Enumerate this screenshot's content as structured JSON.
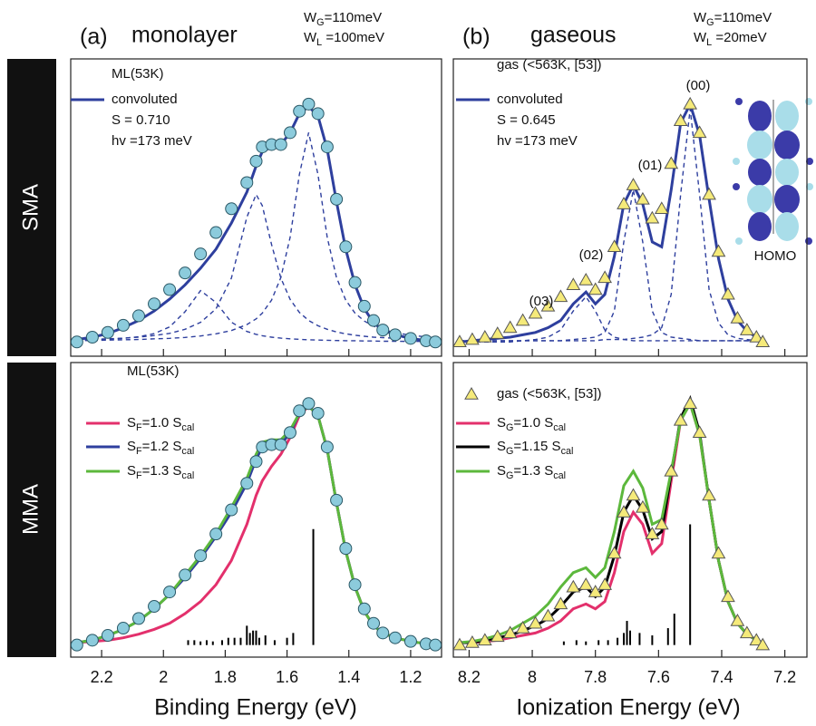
{
  "figure": {
    "panel_labels": [
      "(a)",
      "(b)"
    ],
    "columns": [
      "monolayer",
      "gaseous"
    ],
    "widths": [
      [
        [
          "W",
          "G",
          "=110meV"
        ],
        [
          "W",
          "L",
          " =100meV"
        ]
      ],
      [
        [
          "W",
          "G",
          "=110meV"
        ],
        [
          "W",
          "L",
          " =20meV"
        ]
      ]
    ],
    "rows": [
      "SMA",
      "MMA"
    ],
    "x_labels": [
      "Binding Energy (eV)",
      "Ionization Energy (eV)"
    ]
  },
  "chart_data": [
    {
      "type": "line",
      "xlim": [
        2.3,
        1.1
      ],
      "ylim": [
        -0.06,
        1.19
      ],
      "x": [
        2.28,
        2.23,
        2.18,
        2.13,
        2.08,
        2.03,
        1.98,
        1.93,
        1.88,
        1.83,
        1.78,
        1.73,
        1.7,
        1.68,
        1.65,
        1.62,
        1.59,
        1.56,
        1.53,
        1.5,
        1.47,
        1.44,
        1.41,
        1.38,
        1.35,
        1.32,
        1.29,
        1.25,
        1.2,
        1.15,
        1.12
      ],
      "legend_notes": [
        "S = 0.710",
        "hv =173 meV"
      ],
      "series": [
        {
          "name": "ML(53K)",
          "color": "#8ccbdc",
          "marker": "circle",
          "values": [
            0,
            0.02,
            0.04,
            0.07,
            0.11,
            0.16,
            0.22,
            0.29,
            0.37,
            0.46,
            0.56,
            0.67,
            0.76,
            0.82,
            0.83,
            0.83,
            0.88,
            0.97,
            1.0,
            0.96,
            0.82,
            0.6,
            0.4,
            0.25,
            0.15,
            0.09,
            0.05,
            0.03,
            0.015,
            0.005,
            0
          ]
        },
        {
          "name": "convoluted",
          "color": "#2e3f9e",
          "values": [
            0.01,
            0.02,
            0.035,
            0.06,
            0.09,
            0.13,
            0.18,
            0.24,
            0.31,
            0.39,
            0.5,
            0.63,
            0.74,
            0.8,
            0.82,
            0.83,
            0.88,
            0.96,
            0.99,
            0.95,
            0.81,
            0.59,
            0.39,
            0.24,
            0.14,
            0.08,
            0.05,
            0.03,
            0.015,
            0.005,
            0
          ]
        },
        {
          "color": "#2e3f9e",
          "dash": true,
          "values": [
            0.006,
            0.006,
            0.008,
            0.009,
            0.01,
            0.013,
            0.015,
            0.019,
            0.025,
            0.034,
            0.048,
            0.073,
            0.097,
            0.121,
            0.176,
            0.271,
            0.44,
            0.704,
            0.88,
            0.704,
            0.44,
            0.271,
            0.176,
            0.121,
            0.088,
            0.066,
            0.052,
            0.039,
            0.028,
            0.021,
            0.018
          ]
        },
        {
          "color": "#2e3f9e",
          "dash": true,
          "values": [
            0.009,
            0.011,
            0.013,
            0.016,
            0.02,
            0.027,
            0.036,
            0.053,
            0.082,
            0.139,
            0.268,
            0.525,
            0.62,
            0.573,
            0.41,
            0.268,
            0.179,
            0.124,
            0.09,
            0.068,
            0.053,
            0.042,
            0.034,
            0.028,
            0.024,
            0.02,
            0.018,
            0.015,
            0.012,
            0.01,
            0.009
          ]
        },
        {
          "color": "#2e3f9e",
          "dash": true,
          "values": [
            0.006,
            0.008,
            0.011,
            0.015,
            0.022,
            0.035,
            0.063,
            0.127,
            0.216,
            0.166,
            0.083,
            0.044,
            0.032,
            0.026,
            0.02,
            0.016,
            0.013,
            0.011,
            0.009,
            0.008,
            0.007,
            0.006,
            0.005,
            0.005,
            0.004,
            0.004,
            0.003,
            0.003,
            0.002,
            0.002,
            0.002
          ]
        }
      ]
    },
    {
      "type": "line",
      "xlim": [
        8.25,
        7.13
      ],
      "ylim": [
        -0.06,
        1.19
      ],
      "x": [
        8.23,
        8.19,
        8.15,
        8.11,
        8.07,
        8.03,
        7.99,
        7.95,
        7.91,
        7.87,
        7.83,
        7.8,
        7.77,
        7.74,
        7.71,
        7.68,
        7.65,
        7.62,
        7.59,
        7.56,
        7.53,
        7.5,
        7.47,
        7.44,
        7.41,
        7.38,
        7.35,
        7.32,
        7.29,
        7.27
      ],
      "legend_notes": [
        "S = 0.645",
        "hv =173 meV"
      ],
      "annotations": [
        "(03)",
        "(02)",
        "(01)",
        "(00)",
        "HOMO"
      ],
      "series": [
        {
          "name": "gas (<563K, [53])",
          "color": "#f5ea7a",
          "marker": "triangle",
          "values": [
            0,
            0.01,
            0.02,
            0.035,
            0.06,
            0.09,
            0.12,
            0.15,
            0.19,
            0.24,
            0.26,
            0.22,
            0.27,
            0.4,
            0.58,
            0.66,
            0.6,
            0.52,
            0.56,
            0.75,
            0.93,
            1.0,
            0.88,
            0.62,
            0.38,
            0.2,
            0.1,
            0.05,
            0.02,
            0
          ]
        },
        {
          "name": "convoluted",
          "color": "#2e3f9e",
          "values": [
            0,
            0.005,
            0.01,
            0.015,
            0.02,
            0.03,
            0.04,
            0.06,
            0.09,
            0.16,
            0.21,
            0.16,
            0.2,
            0.36,
            0.58,
            0.66,
            0.58,
            0.42,
            0.4,
            0.64,
            0.92,
            1.0,
            0.87,
            0.6,
            0.35,
            0.18,
            0.09,
            0.045,
            0.02,
            0.01
          ]
        },
        {
          "color": "#2e3f9e",
          "dash": true,
          "values": [
            0,
            0,
            0,
            0,
            0,
            0.005,
            0.005,
            0.005,
            0.005,
            0.005,
            0.005,
            0.005,
            0.01,
            0.01,
            0.01,
            0.015,
            0.02,
            0.03,
            0.06,
            0.2,
            0.62,
            0.98,
            0.62,
            0.22,
            0.08,
            0.03,
            0.015,
            0.01,
            0.005,
            0.005
          ]
        },
        {
          "color": "#2e3f9e",
          "dash": true,
          "values": [
            0.005,
            0.005,
            0.005,
            0.005,
            0.005,
            0.005,
            0.005,
            0.005,
            0.005,
            0.01,
            0.015,
            0.02,
            0.04,
            0.13,
            0.42,
            0.64,
            0.42,
            0.13,
            0.04,
            0.02,
            0.015,
            0.01,
            0.005,
            0.005,
            0.005,
            0.005,
            0.005,
            0.005,
            0.005,
            0.005
          ]
        },
        {
          "color": "#2e3f9e",
          "dash": true,
          "values": [
            0.005,
            0.005,
            0.005,
            0.005,
            0.005,
            0.005,
            0.01,
            0.02,
            0.05,
            0.13,
            0.19,
            0.13,
            0.05,
            0.02,
            0.01,
            0.005,
            0.005,
            0.005,
            0.005,
            0.005,
            0.005,
            0.005,
            0.005,
            0.005,
            0.005,
            0.005,
            0.005,
            0.005,
            0.005,
            0.005
          ]
        }
      ]
    },
    {
      "type": "line",
      "xlim": [
        2.3,
        1.1
      ],
      "ylim": [
        -0.05,
        1.17
      ],
      "xticks": [
        2.2,
        2,
        1.8,
        1.6,
        1.4,
        1.2
      ],
      "x": [
        2.28,
        2.23,
        2.18,
        2.13,
        2.08,
        2.03,
        1.98,
        1.93,
        1.88,
        1.83,
        1.78,
        1.73,
        1.7,
        1.68,
        1.65,
        1.62,
        1.59,
        1.56,
        1.53,
        1.5,
        1.47,
        1.44,
        1.41,
        1.38,
        1.35,
        1.32,
        1.29,
        1.25,
        1.2,
        1.15,
        1.12
      ],
      "series": [
        {
          "name": [
            "S",
            "F",
            "=1.0 S",
            "cal"
          ],
          "color": "#e3306c",
          "values": [
            0.01,
            0.015,
            0.02,
            0.03,
            0.045,
            0.065,
            0.09,
            0.13,
            0.18,
            0.25,
            0.35,
            0.5,
            0.62,
            0.68,
            0.74,
            0.79,
            0.86,
            0.95,
            0.99,
            0.95,
            0.81,
            0.59,
            0.39,
            0.24,
            0.14,
            0.08,
            0.05,
            0.03,
            0.015,
            0.005,
            0
          ]
        },
        {
          "name": [
            "S",
            "F",
            "=1.2 S",
            "cal"
          ],
          "color": "#2e3f9e",
          "values": [
            0.01,
            0.02,
            0.04,
            0.065,
            0.1,
            0.15,
            0.21,
            0.28,
            0.36,
            0.45,
            0.55,
            0.67,
            0.77,
            0.82,
            0.83,
            0.83,
            0.88,
            0.96,
            0.99,
            0.95,
            0.81,
            0.59,
            0.39,
            0.24,
            0.14,
            0.08,
            0.05,
            0.03,
            0.015,
            0.005,
            0
          ]
        },
        {
          "name": [
            "S",
            "F",
            "=1.3 S",
            "cal"
          ],
          "color": "#5cb83c",
          "values": [
            0.01,
            0.02,
            0.04,
            0.065,
            0.1,
            0.15,
            0.21,
            0.29,
            0.37,
            0.46,
            0.57,
            0.69,
            0.79,
            0.84,
            0.85,
            0.85,
            0.89,
            0.96,
            0.99,
            0.95,
            0.81,
            0.59,
            0.39,
            0.24,
            0.14,
            0.08,
            0.05,
            0.03,
            0.015,
            0.005,
            0
          ]
        },
        {
          "name": "ML(53K)",
          "color": "#8ccbdc",
          "marker": "circle",
          "values": [
            0,
            0.02,
            0.04,
            0.07,
            0.11,
            0.16,
            0.22,
            0.29,
            0.37,
            0.46,
            0.56,
            0.67,
            0.76,
            0.82,
            0.83,
            0.83,
            0.88,
            0.97,
            1.0,
            0.96,
            0.82,
            0.6,
            0.4,
            0.25,
            0.15,
            0.09,
            0.05,
            0.03,
            0.015,
            0.005,
            0
          ]
        },
        {
          "color": "#000000",
          "style": "stick",
          "x": [
            1.92,
            1.9,
            1.88,
            1.86,
            1.84,
            1.81,
            1.79,
            1.77,
            1.75,
            1.73,
            1.72,
            1.71,
            1.7,
            1.69,
            1.67,
            1.64,
            1.6,
            1.58,
            1.515
          ],
          "values": [
            0.02,
            0.02,
            0.015,
            0.02,
            0.015,
            0.02,
            0.03,
            0.03,
            0.03,
            0.08,
            0.05,
            0.06,
            0.06,
            0.03,
            0.04,
            0.02,
            0.03,
            0.05,
            0.48
          ]
        }
      ]
    },
    {
      "type": "line",
      "xlim": [
        8.25,
        7.13
      ],
      "ylim": [
        -0.05,
        1.17
      ],
      "xticks": [
        8.2,
        8,
        7.8,
        7.6,
        7.4,
        7.2
      ],
      "x": [
        8.23,
        8.19,
        8.15,
        8.11,
        8.07,
        8.03,
        7.99,
        7.95,
        7.91,
        7.87,
        7.83,
        7.8,
        7.77,
        7.74,
        7.71,
        7.68,
        7.65,
        7.62,
        7.59,
        7.56,
        7.53,
        7.5,
        7.47,
        7.44,
        7.41,
        7.38,
        7.35,
        7.32,
        7.29,
        7.27
      ],
      "series": [
        {
          "name": [
            "S",
            "G",
            "=1.0 S",
            "cal"
          ],
          "color": "#e3306c",
          "values": [
            0.01,
            0.01,
            0.015,
            0.02,
            0.03,
            0.04,
            0.05,
            0.07,
            0.1,
            0.15,
            0.17,
            0.15,
            0.18,
            0.3,
            0.47,
            0.55,
            0.5,
            0.38,
            0.42,
            0.68,
            0.93,
            1.0,
            0.87,
            0.6,
            0.35,
            0.18,
            0.09,
            0.045,
            0.02,
            0.01
          ]
        },
        {
          "name": [
            "S",
            "G",
            "=1.15 S",
            "cal"
          ],
          "color": "#000000",
          "values": [
            0.01,
            0.01,
            0.02,
            0.03,
            0.04,
            0.06,
            0.08,
            0.11,
            0.16,
            0.22,
            0.24,
            0.2,
            0.24,
            0.37,
            0.55,
            0.62,
            0.56,
            0.44,
            0.47,
            0.71,
            0.94,
            1.02,
            0.88,
            0.6,
            0.35,
            0.18,
            0.09,
            0.045,
            0.02,
            0.01
          ]
        },
        {
          "name": [
            "S",
            "G",
            "=1.3 S",
            "cal"
          ],
          "color": "#5cb83c",
          "values": [
            0.01,
            0.015,
            0.025,
            0.04,
            0.06,
            0.09,
            0.12,
            0.17,
            0.24,
            0.3,
            0.32,
            0.28,
            0.32,
            0.47,
            0.66,
            0.72,
            0.65,
            0.5,
            0.52,
            0.72,
            0.93,
            1.0,
            0.87,
            0.6,
            0.35,
            0.18,
            0.09,
            0.045,
            0.02,
            0.01
          ]
        },
        {
          "name": "gas (<563K, [53])",
          "color": "#f5ea7a",
          "marker": "triangle",
          "values": [
            0,
            0.01,
            0.02,
            0.035,
            0.05,
            0.07,
            0.09,
            0.12,
            0.17,
            0.24,
            0.25,
            0.22,
            0.25,
            0.38,
            0.55,
            0.62,
            0.57,
            0.46,
            0.5,
            0.72,
            0.93,
            1.0,
            0.88,
            0.62,
            0.38,
            0.2,
            0.1,
            0.05,
            0.02,
            0
          ]
        },
        {
          "color": "#000000",
          "style": "stick",
          "x": [
            7.9,
            7.86,
            7.83,
            7.79,
            7.76,
            7.73,
            7.71,
            7.7,
            7.69,
            7.66,
            7.62,
            7.57,
            7.55,
            7.5
          ],
          "values": [
            0.015,
            0.02,
            0.015,
            0.02,
            0.02,
            0.03,
            0.05,
            0.1,
            0.06,
            0.05,
            0.04,
            0.07,
            0.13,
            0.5
          ]
        }
      ]
    }
  ]
}
